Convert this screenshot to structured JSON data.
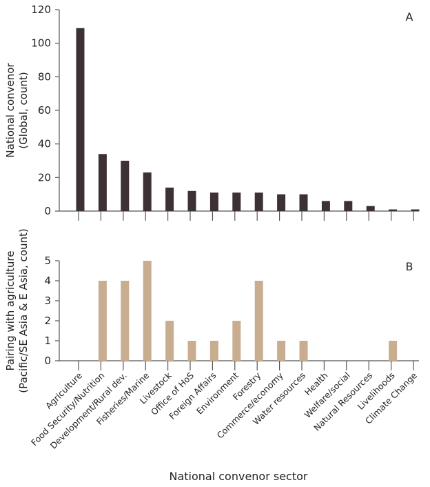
{
  "chart_data": [
    {
      "type": "bar",
      "panel_label": "A",
      "ylabel_lines": [
        "National convenor",
        "(Global, count)"
      ],
      "ylim": [
        0,
        120
      ],
      "yticks": [
        0,
        20,
        40,
        60,
        80,
        100,
        120
      ],
      "color": "#3d3134",
      "categories": [
        "Agriculture",
        "Food Security/Nutrition",
        "Development/Rural dev.",
        "Fisheries/Marine",
        "Livestock",
        "Office of HoS",
        "Foreign Affairs",
        "Environment",
        "Forestry",
        "Commerce/economy",
        "Water resources",
        "Health",
        "Welfare/social",
        "Natural Resources",
        "Livelihoods",
        "Climate Change"
      ],
      "values": [
        109,
        34,
        30,
        23,
        14,
        12,
        11,
        11,
        11,
        10,
        10,
        6,
        6,
        3,
        1,
        1
      ]
    },
    {
      "type": "bar",
      "panel_label": "B",
      "ylabel_lines": [
        "Pairing with agriculture",
        "(Pacific/SE Asia & E Asia, count)"
      ],
      "ylim": [
        0,
        5
      ],
      "yticks": [
        0,
        1,
        2,
        3,
        4,
        5
      ],
      "color": "#c8ad90",
      "categories": [
        "Agriculture",
        "Food Security/Nutrition",
        "Development/Rural dev.",
        "Fisheries/Marine",
        "Livestock",
        "Office of HoS",
        "Foreign Affairs",
        "Environment",
        "Forestry",
        "Commerce/economy",
        "Water resources",
        "Health",
        "Welfare/social",
        "Natural Resources",
        "Livelihoods",
        "Climate Change"
      ],
      "values": [
        0,
        4,
        4,
        5,
        2,
        1,
        1,
        2,
        4,
        1,
        1,
        0,
        0,
        0,
        1,
        0
      ],
      "xlabel": "National convenor sector"
    }
  ]
}
